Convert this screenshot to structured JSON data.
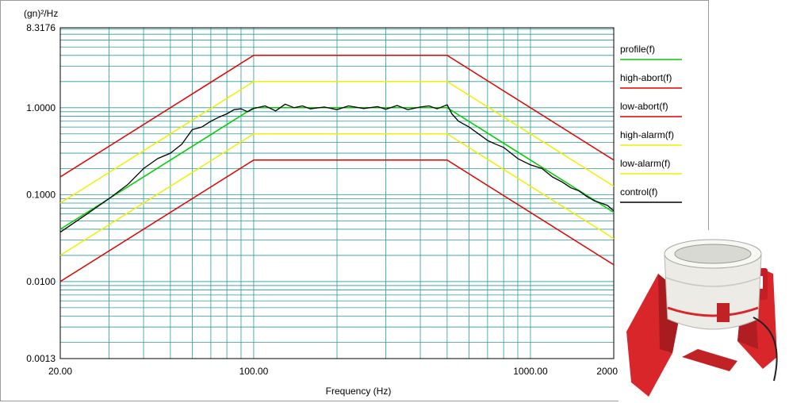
{
  "chart_data": {
    "type": "line",
    "xlabel": "Frequency (Hz)",
    "ylabel": "(gn)²/Hz",
    "x_scale": "log",
    "y_scale": "log",
    "xlim": [
      20,
      2000
    ],
    "ylim": [
      0.0013,
      8.3176
    ],
    "x_tick_labels": [
      "20.00",
      "100.00",
      "1000.00",
      "2000.00"
    ],
    "y_tick_labels": [
      "8.3176",
      "1.0000",
      "0.1000",
      "0.0100",
      "0.0013"
    ],
    "grid": true,
    "legend_position": "right",
    "series": [
      {
        "name": "profile(f)",
        "color": "#00cc00",
        "x": [
          20,
          100,
          500,
          2000
        ],
        "y": [
          0.04,
          1.0,
          1.0,
          0.0625
        ]
      },
      {
        "name": "high-abort(f)",
        "color": "#e00000",
        "x": [
          20,
          100,
          500,
          2000
        ],
        "y": [
          0.16,
          4.0,
          4.0,
          0.25
        ]
      },
      {
        "name": "low-abort(f)",
        "color": "#e00000",
        "x": [
          20,
          100,
          500,
          2000
        ],
        "y": [
          0.01,
          0.25,
          0.25,
          0.0156
        ]
      },
      {
        "name": "high-alarm(f)",
        "color": "#f0f000",
        "x": [
          20,
          100,
          500,
          2000
        ],
        "y": [
          0.08,
          2.0,
          2.0,
          0.125
        ]
      },
      {
        "name": "low-alarm(f)",
        "color": "#f0f000",
        "x": [
          20,
          100,
          500,
          2000
        ],
        "y": [
          0.02,
          0.5,
          0.5,
          0.03125
        ]
      },
      {
        "name": "control(f)",
        "color": "#000000",
        "x": [
          20,
          25,
          30,
          35,
          40,
          45,
          50,
          55,
          60,
          65,
          70,
          75,
          80,
          85,
          90,
          95,
          100,
          110,
          120,
          130,
          140,
          150,
          160,
          180,
          200,
          220,
          250,
          280,
          300,
          330,
          360,
          400,
          430,
          460,
          500,
          520,
          550,
          600,
          650,
          700,
          750,
          800,
          900,
          1000,
          1100,
          1200,
          1300,
          1400,
          1500,
          1600,
          1700,
          1800,
          1900,
          2000
        ],
        "y": [
          0.037,
          0.06,
          0.09,
          0.13,
          0.2,
          0.26,
          0.3,
          0.38,
          0.56,
          0.6,
          0.7,
          0.78,
          0.85,
          0.95,
          0.97,
          0.9,
          0.98,
          1.05,
          0.92,
          1.1,
          1.0,
          1.05,
          0.97,
          1.02,
          0.95,
          1.05,
          0.98,
          1.03,
          0.96,
          1.06,
          0.95,
          1.02,
          1.05,
          0.97,
          1.08,
          0.85,
          0.7,
          0.6,
          0.5,
          0.42,
          0.38,
          0.35,
          0.26,
          0.22,
          0.2,
          0.16,
          0.14,
          0.12,
          0.11,
          0.095,
          0.085,
          0.08,
          0.075,
          0.065
        ]
      }
    ]
  }
}
